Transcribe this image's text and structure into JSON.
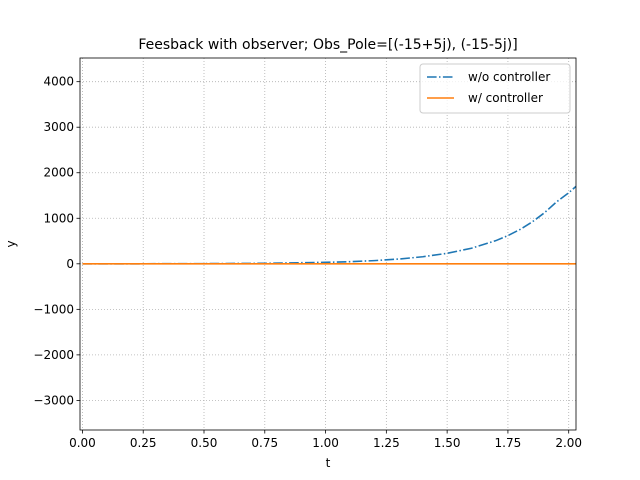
{
  "chart_data": {
    "type": "line",
    "title": "Feesback with observer; Obs_Pole=[(-15+5j), (-15-5j)]",
    "xlabel": "t",
    "ylabel": "y",
    "xlim": [
      -0.01,
      2.03
    ],
    "ylim": [
      -3650,
      4520
    ],
    "xticks": [
      0.0,
      0.25,
      0.5,
      0.75,
      1.0,
      1.25,
      1.5,
      1.75,
      2.0
    ],
    "xtick_labels": [
      "0.00",
      "0.25",
      "0.50",
      "0.75",
      "1.00",
      "1.25",
      "1.50",
      "1.75",
      "2.00"
    ],
    "yticks": [
      -3000,
      -2000,
      -1000,
      0,
      1000,
      2000,
      3000,
      4000
    ],
    "ytick_labels": [
      "−3000",
      "−2000",
      "−1000",
      "0",
      "1000",
      "2000",
      "3000",
      "4000"
    ],
    "grid": true,
    "grid_style": "dotted",
    "legend_position": "top-right",
    "series": [
      {
        "name": "w/o controller",
        "color": "#1f77b4",
        "line_style": "dashdot",
        "x": [
          0.0,
          0.25,
          0.5,
          0.75,
          1.0,
          1.1,
          1.2,
          1.3,
          1.4,
          1.5,
          1.6,
          1.7,
          1.75,
          1.8,
          1.85,
          1.9,
          1.95,
          2.0,
          2.03
        ],
        "y": [
          0,
          1,
          4,
          11,
          32,
          47,
          70,
          104,
          155,
          230,
          342,
          508,
          620,
          755,
          920,
          1120,
          1360,
          1560,
          1700
        ]
      },
      {
        "name": "w/ controller",
        "color": "#ff7f0e",
        "line_style": "solid",
        "x": [
          0.0,
          0.25,
          0.5,
          0.75,
          1.0,
          1.25,
          1.5,
          1.75,
          2.0,
          2.03
        ],
        "y": [
          0,
          0,
          0,
          0,
          0,
          0,
          0,
          0,
          0,
          0
        ]
      }
    ]
  }
}
